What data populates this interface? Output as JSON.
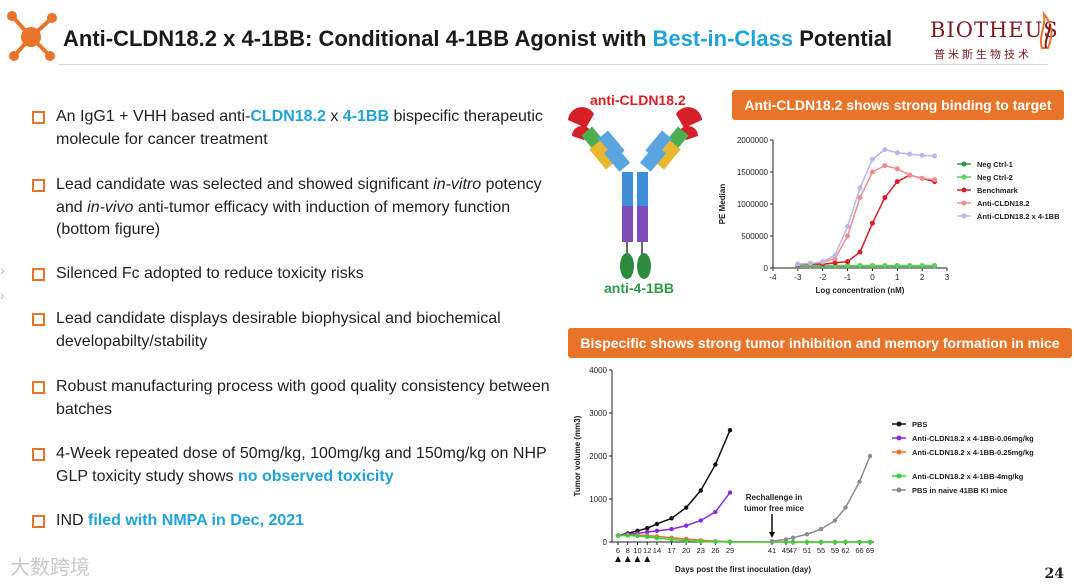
{
  "header": {
    "title_pre": "Anti-CLDN18.2 x 4-1BB: Conditional 4-1BB Agonist with ",
    "title_highlight": "Best-in-Class",
    "title_post": " Potential",
    "company_en": "BIOTHEUS",
    "company_cn": "普米斯生物技术"
  },
  "bullets": [
    {
      "a": "An IgG1 + VHH based anti-",
      "b": "CLDN18.2",
      "c": " x ",
      "d": "4-1BB",
      "e": " bispecific therapeutic molecule for cancer treatment"
    },
    {
      "a": "Lead candidate was selected and showed significant ",
      "i1": "in-vitro",
      "b": " potency and ",
      "i2": "in-vivo",
      "c": " anti-tumor efficacy with induction of memory function (bottom figure)"
    },
    {
      "text": "Silenced Fc adopted to reduce toxicity risks"
    },
    {
      "text": "Lead candidate displays desirable biophysical and biochemical developabilty/stability"
    },
    {
      "text": "Robust manufacturing process with good quality consistency between batches"
    },
    {
      "a": "4-Week repeated dose of 50mg/kg, 100mg/kg and 150mg/kg on NHP GLP toxicity study shows ",
      "b": "no observed toxicity"
    },
    {
      "a": "IND ",
      "b": "filed with NMPA in Dec, 2021"
    }
  ],
  "antibody": {
    "top_label": "anti-CLDN18.2",
    "bottom_label": "anti-4-1BB"
  },
  "banners": {
    "binding": "Anti-CLDN18.2 shows strong binding to target",
    "tumor": "Bispecific shows strong tumor inhibition and memory formation in mice"
  },
  "page_number": "24",
  "watermark": "大数跨境",
  "colors": {
    "accent": "#e8742a",
    "highlight": "#1fa3d8",
    "brand": "#7a1d22"
  },
  "chart_data": [
    {
      "type": "scatter",
      "title": "Anti-CLDN18.2 shows strong binding to target",
      "xlabel": "Log concentration (nM)",
      "ylabel": "PE Median",
      "xlim": [
        -4,
        3
      ],
      "ylim": [
        0,
        2000000
      ],
      "xticks": [
        "-4",
        "-3",
        "-2",
        "-1",
        "0",
        "1",
        "2",
        "3"
      ],
      "yticks": [
        "0",
        "500000",
        "1000000",
        "1500000",
        "2000000"
      ],
      "x": [
        -3,
        -2.5,
        -2,
        -1.5,
        -1,
        -0.5,
        0,
        0.5,
        1,
        1.5,
        2,
        2.5
      ],
      "series": [
        {
          "name": "Neg Ctrl-1",
          "color": "#2e9a48",
          "values": [
            30000,
            30000,
            30000,
            30000,
            30000,
            30000,
            30000,
            30000,
            30000,
            30000,
            30000,
            30000
          ]
        },
        {
          "name": "Neg Ctrl-2",
          "color": "#5fcf5f",
          "values": [
            40000,
            40000,
            40000,
            40000,
            40000,
            40000,
            40000,
            40000,
            40000,
            40000,
            40000,
            40000
          ]
        },
        {
          "name": "Benchmark",
          "color": "#d61f26",
          "values": [
            50000,
            60000,
            60000,
            80000,
            100000,
            250000,
            700000,
            1100000,
            1350000,
            1450000,
            1400000,
            1350000
          ]
        },
        {
          "name": "Anti-CLDN18.2",
          "color": "#f28c8c",
          "values": [
            60000,
            70000,
            90000,
            150000,
            500000,
            1100000,
            1500000,
            1600000,
            1550000,
            1450000,
            1400000,
            1380000
          ]
        },
        {
          "name": "Anti-CLDN18.2 x 4-1BB",
          "color": "#b8b8f0",
          "values": [
            60000,
            70000,
            100000,
            200000,
            650000,
            1250000,
            1700000,
            1850000,
            1800000,
            1780000,
            1760000,
            1750000
          ]
        }
      ]
    },
    {
      "type": "line",
      "title": "Bispecific shows strong tumor inhibition and memory formation in mice",
      "xlabel": "Days post the first inoculation (day)",
      "ylabel": "Tumor volume (mm3)",
      "ylim": [
        0,
        4000
      ],
      "yticks": [
        "0",
        "1000",
        "2000",
        "3000",
        "4000"
      ],
      "x_ticks": [
        "6",
        "8",
        "10",
        "12",
        "14",
        "17",
        "20",
        "23",
        "26",
        "29",
        "41",
        "45",
        "47",
        "51",
        "55",
        "59",
        "62",
        "66",
        "69"
      ],
      "annotation": "Rechallenge in tumor free mice",
      "series": [
        {
          "name": "PBS",
          "color": "#111111",
          "x": [
            6,
            8,
            10,
            12,
            14,
            17,
            20,
            23,
            26,
            29
          ],
          "values": [
            150,
            200,
            260,
            320,
            420,
            550,
            800,
            1200,
            1800,
            2600
          ]
        },
        {
          "name": "Anti-CLDN18.2 x 4-1BB-0.06mg/kg",
          "color": "#8a2be2",
          "x": [
            6,
            8,
            10,
            12,
            14,
            17,
            20,
            23,
            26,
            29
          ],
          "values": [
            150,
            180,
            200,
            230,
            260,
            300,
            380,
            500,
            700,
            1150
          ]
        },
        {
          "name": "Anti-CLDN18.2 x 4-1BB-0.25mg/kg",
          "color": "#e8742a",
          "x": [
            6,
            8,
            10,
            12,
            14,
            17,
            20,
            23,
            26,
            29,
            41,
            45,
            47,
            51,
            55,
            59,
            62,
            66,
            69
          ],
          "values": [
            150,
            160,
            160,
            150,
            130,
            100,
            70,
            40,
            20,
            10,
            0,
            0,
            0,
            0,
            0,
            0,
            0,
            0,
            0
          ]
        },
        {
          "name": "Anti-CLDN18.2 x 4-1BB-4mg/kg",
          "color": "#3ccf3c",
          "x": [
            6,
            8,
            10,
            12,
            14,
            17,
            20,
            23,
            26,
            29,
            41,
            45,
            47,
            51,
            55,
            59,
            62,
            66,
            69
          ],
          "values": [
            150,
            150,
            140,
            120,
            90,
            60,
            30,
            10,
            5,
            0,
            0,
            0,
            0,
            0,
            0,
            0,
            0,
            0,
            0
          ]
        },
        {
          "name": "PBS in naive 41BB KI mice",
          "color": "#8c8c8c",
          "x": [
            41,
            45,
            47,
            51,
            55,
            59,
            62,
            66,
            69
          ],
          "values": [
            20,
            60,
            100,
            180,
            300,
            500,
            800,
            1400,
            2000
          ]
        }
      ]
    }
  ]
}
